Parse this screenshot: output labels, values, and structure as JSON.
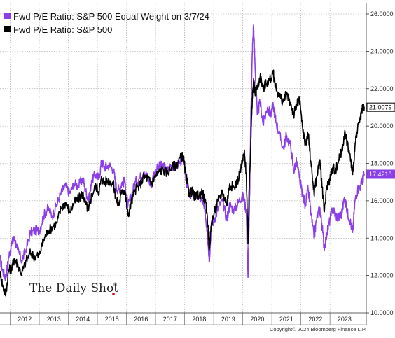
{
  "chart_data": {
    "type": "line",
    "title": "",
    "xlabel": "",
    "ylabel": "",
    "x_tick_labels": [
      "2012",
      "2013",
      "2014",
      "2015",
      "2016",
      "2017",
      "2018",
      "2019",
      "2020",
      "2021",
      "2022",
      "2023"
    ],
    "y_tick_labels": [
      "10.0000",
      "12.0000",
      "14.0000",
      "16.0000",
      "18.0000",
      "20.0000",
      "22.0000",
      "24.0000",
      "26.0000"
    ],
    "ylim": [
      10,
      26.6
    ],
    "xlim": [
      2011.65,
      2024.25
    ],
    "y_axis_side": "right",
    "grid": true,
    "legend_position": "top-left",
    "series": [
      {
        "name": "Fwd P/E Ratio: S&P 500 Equal Weight on 3/7/24",
        "color": "#8B3FE6",
        "last_value_label": "17.4218",
        "points": [
          [
            2011.65,
            12.9
          ],
          [
            2011.75,
            12.2
          ],
          [
            2011.85,
            11.9
          ],
          [
            2011.95,
            13.0
          ],
          [
            2012.05,
            13.7
          ],
          [
            2012.15,
            14.0
          ],
          [
            2012.25,
            13.4
          ],
          [
            2012.4,
            12.8
          ],
          [
            2012.55,
            13.4
          ],
          [
            2012.7,
            14.3
          ],
          [
            2012.85,
            14.4
          ],
          [
            2013.0,
            14.4
          ],
          [
            2013.15,
            15.2
          ],
          [
            2013.3,
            15.6
          ],
          [
            2013.45,
            15.2
          ],
          [
            2013.6,
            15.8
          ],
          [
            2013.75,
            16.4
          ],
          [
            2013.9,
            16.8
          ],
          [
            2014.05,
            16.4
          ],
          [
            2014.2,
            16.9
          ],
          [
            2014.35,
            16.8
          ],
          [
            2014.5,
            17.2
          ],
          [
            2014.6,
            16.5
          ],
          [
            2014.7,
            16.0
          ],
          [
            2014.8,
            17.1
          ],
          [
            2014.95,
            17.4
          ],
          [
            2015.05,
            17.2
          ],
          [
            2015.15,
            18.1
          ],
          [
            2015.25,
            17.8
          ],
          [
            2015.4,
            17.9
          ],
          [
            2015.55,
            17.7
          ],
          [
            2015.65,
            16.7
          ],
          [
            2015.75,
            16.6
          ],
          [
            2015.85,
            17.0
          ],
          [
            2015.95,
            17.0
          ],
          [
            2016.05,
            15.7
          ],
          [
            2016.15,
            16.2
          ],
          [
            2016.3,
            17.0
          ],
          [
            2016.45,
            17.2
          ],
          [
            2016.6,
            17.6
          ],
          [
            2016.75,
            17.2
          ],
          [
            2016.85,
            16.8
          ],
          [
            2016.95,
            17.5
          ],
          [
            2017.1,
            17.8
          ],
          [
            2017.25,
            17.9
          ],
          [
            2017.4,
            17.6
          ],
          [
            2017.55,
            17.9
          ],
          [
            2017.7,
            17.8
          ],
          [
            2017.85,
            18.1
          ],
          [
            2017.95,
            18.3
          ],
          [
            2018.05,
            17.2
          ],
          [
            2018.15,
            16.4
          ],
          [
            2018.25,
            16.3
          ],
          [
            2018.35,
            16.3
          ],
          [
            2018.5,
            16.2
          ],
          [
            2018.6,
            16.0
          ],
          [
            2018.7,
            15.4
          ],
          [
            2018.78,
            14.4
          ],
          [
            2018.85,
            12.8
          ],
          [
            2018.92,
            14.7
          ],
          [
            2019.05,
            15.1
          ],
          [
            2019.15,
            15.6
          ],
          [
            2019.3,
            16.0
          ],
          [
            2019.45,
            15.0
          ],
          [
            2019.55,
            15.8
          ],
          [
            2019.7,
            15.5
          ],
          [
            2019.85,
            15.9
          ],
          [
            2019.98,
            16.3
          ],
          [
            2020.05,
            16.0
          ],
          [
            2020.12,
            15.5
          ],
          [
            2020.18,
            11.9
          ],
          [
            2020.23,
            15.5
          ],
          [
            2020.28,
            20.8
          ],
          [
            2020.33,
            24.0
          ],
          [
            2020.37,
            25.4
          ],
          [
            2020.42,
            23.4
          ],
          [
            2020.5,
            20.6
          ],
          [
            2020.6,
            21.3
          ],
          [
            2020.7,
            20.1
          ],
          [
            2020.85,
            21.0
          ],
          [
            2020.95,
            20.6
          ],
          [
            2021.05,
            21.1
          ],
          [
            2021.15,
            20.2
          ],
          [
            2021.25,
            19.6
          ],
          [
            2021.4,
            18.8
          ],
          [
            2021.5,
            19.5
          ],
          [
            2021.65,
            18.9
          ],
          [
            2021.75,
            17.6
          ],
          [
            2021.85,
            18.1
          ],
          [
            2021.95,
            17.2
          ],
          [
            2022.05,
            16.4
          ],
          [
            2022.15,
            15.8
          ],
          [
            2022.25,
            16.6
          ],
          [
            2022.35,
            15.3
          ],
          [
            2022.45,
            14.0
          ],
          [
            2022.55,
            15.1
          ],
          [
            2022.65,
            15.6
          ],
          [
            2022.72,
            14.8
          ],
          [
            2022.8,
            13.5
          ],
          [
            2022.9,
            14.3
          ],
          [
            2023.0,
            15.0
          ],
          [
            2023.1,
            15.6
          ],
          [
            2023.2,
            15.2
          ],
          [
            2023.3,
            15.1
          ],
          [
            2023.4,
            15.3
          ],
          [
            2023.5,
            16.2
          ],
          [
            2023.6,
            15.4
          ],
          [
            2023.7,
            14.9
          ],
          [
            2023.78,
            14.3
          ],
          [
            2023.86,
            16.0
          ],
          [
            2023.95,
            16.6
          ],
          [
            2024.05,
            16.8
          ],
          [
            2024.12,
            17.1
          ],
          [
            2024.18,
            17.42
          ]
        ]
      },
      {
        "name": "Fwd P/E Ratio: S&P 500",
        "color": "#000000",
        "last_value_label": "21.0079",
        "points": [
          [
            2011.65,
            12.2
          ],
          [
            2011.75,
            11.4
          ],
          [
            2011.85,
            11.0
          ],
          [
            2011.95,
            12.3
          ],
          [
            2012.05,
            12.4
          ],
          [
            2012.15,
            12.9
          ],
          [
            2012.25,
            12.6
          ],
          [
            2012.4,
            12.1
          ],
          [
            2012.55,
            12.8
          ],
          [
            2012.7,
            13.2
          ],
          [
            2012.85,
            13.0
          ],
          [
            2013.0,
            13.1
          ],
          [
            2013.15,
            13.9
          ],
          [
            2013.3,
            14.4
          ],
          [
            2013.45,
            14.6
          ],
          [
            2013.6,
            14.8
          ],
          [
            2013.75,
            15.6
          ],
          [
            2013.9,
            15.9
          ],
          [
            2014.05,
            15.4
          ],
          [
            2014.2,
            15.9
          ],
          [
            2014.35,
            16.1
          ],
          [
            2014.5,
            16.4
          ],
          [
            2014.6,
            15.8
          ],
          [
            2014.7,
            15.5
          ],
          [
            2014.8,
            16.3
          ],
          [
            2014.95,
            16.8
          ],
          [
            2015.05,
            16.5
          ],
          [
            2015.15,
            17.2
          ],
          [
            2015.25,
            17.0
          ],
          [
            2015.4,
            17.1
          ],
          [
            2015.55,
            16.9
          ],
          [
            2015.65,
            16.0
          ],
          [
            2015.75,
            15.8
          ],
          [
            2015.85,
            16.6
          ],
          [
            2015.95,
            16.5
          ],
          [
            2016.05,
            15.2
          ],
          [
            2016.15,
            15.8
          ],
          [
            2016.3,
            16.6
          ],
          [
            2016.45,
            16.8
          ],
          [
            2016.6,
            17.3
          ],
          [
            2016.75,
            17.2
          ],
          [
            2016.85,
            16.9
          ],
          [
            2016.95,
            17.2
          ],
          [
            2017.1,
            17.5
          ],
          [
            2017.25,
            17.7
          ],
          [
            2017.4,
            17.5
          ],
          [
            2017.55,
            17.8
          ],
          [
            2017.7,
            17.9
          ],
          [
            2017.85,
            18.3
          ],
          [
            2017.95,
            18.4
          ],
          [
            2018.05,
            17.3
          ],
          [
            2018.15,
            16.4
          ],
          [
            2018.25,
            16.5
          ],
          [
            2018.35,
            16.2
          ],
          [
            2018.5,
            16.3
          ],
          [
            2018.6,
            16.5
          ],
          [
            2018.7,
            16.0
          ],
          [
            2018.78,
            15.2
          ],
          [
            2018.85,
            13.4
          ],
          [
            2018.92,
            14.8
          ],
          [
            2019.05,
            15.5
          ],
          [
            2019.15,
            16.0
          ],
          [
            2019.3,
            16.5
          ],
          [
            2019.45,
            15.8
          ],
          [
            2019.55,
            16.9
          ],
          [
            2019.7,
            16.7
          ],
          [
            2019.85,
            17.2
          ],
          [
            2019.98,
            18.0
          ],
          [
            2020.05,
            18.6
          ],
          [
            2020.12,
            17.5
          ],
          [
            2020.18,
            13.7
          ],
          [
            2020.23,
            17.2
          ],
          [
            2020.28,
            19.3
          ],
          [
            2020.33,
            21.5
          ],
          [
            2020.37,
            22.4
          ],
          [
            2020.42,
            21.8
          ],
          [
            2020.5,
            22.0
          ],
          [
            2020.6,
            22.7
          ],
          [
            2020.7,
            22.0
          ],
          [
            2020.85,
            22.4
          ],
          [
            2020.95,
            22.5
          ],
          [
            2021.05,
            22.8
          ],
          [
            2021.15,
            22.0
          ],
          [
            2021.25,
            21.6
          ],
          [
            2021.4,
            21.3
          ],
          [
            2021.5,
            21.7
          ],
          [
            2021.65,
            21.2
          ],
          [
            2021.75,
            20.6
          ],
          [
            2021.85,
            21.1
          ],
          [
            2021.95,
            21.4
          ],
          [
            2022.05,
            20.0
          ],
          [
            2022.15,
            19.0
          ],
          [
            2022.25,
            19.6
          ],
          [
            2022.35,
            18.0
          ],
          [
            2022.45,
            16.4
          ],
          [
            2022.55,
            17.3
          ],
          [
            2022.65,
            18.2
          ],
          [
            2022.72,
            17.0
          ],
          [
            2022.8,
            15.4
          ],
          [
            2022.9,
            16.8
          ],
          [
            2023.0,
            17.2
          ],
          [
            2023.1,
            17.8
          ],
          [
            2023.2,
            17.6
          ],
          [
            2023.3,
            18.2
          ],
          [
            2023.4,
            18.6
          ],
          [
            2023.5,
            19.6
          ],
          [
            2023.6,
            19.1
          ],
          [
            2023.7,
            18.3
          ],
          [
            2023.78,
            17.4
          ],
          [
            2023.86,
            18.9
          ],
          [
            2023.95,
            19.8
          ],
          [
            2024.05,
            20.4
          ],
          [
            2024.12,
            20.9
          ],
          [
            2024.18,
            21.01
          ]
        ]
      }
    ]
  },
  "watermark": {
    "text": "The Daily Shot",
    "mark": "®"
  },
  "copyright": "Copyright© 2024 Bloomberg Finance L.P."
}
